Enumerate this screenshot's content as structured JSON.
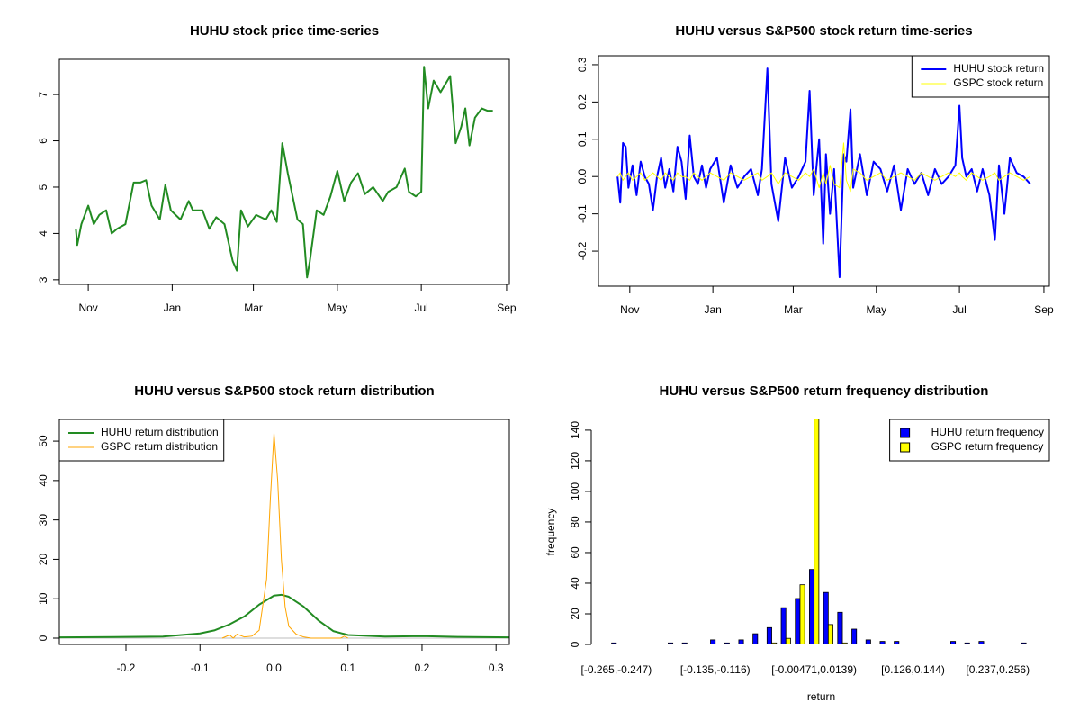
{
  "chart_data": [
    {
      "type": "line",
      "title": "HUHU stock price time-series",
      "color": "#228b22",
      "x": [
        22,
        23,
        26,
        31,
        35,
        39,
        44,
        48,
        52,
        58,
        64,
        69,
        73,
        77,
        83,
        87,
        91,
        98,
        104,
        107,
        114,
        119,
        124,
        130,
        136,
        139,
        142,
        147,
        153,
        160,
        164,
        168,
        172,
        176,
        183,
        187,
        190,
        192,
        197,
        202,
        207,
        212,
        217,
        222,
        227,
        232,
        238,
        245,
        249,
        255,
        261,
        264,
        269,
        273,
        275,
        278,
        282,
        287,
        294,
        298,
        302,
        305,
        308,
        312,
        317,
        321,
        325
      ],
      "values": [
        4.1,
        3.75,
        4.2,
        4.6,
        4.2,
        4.4,
        4.5,
        4.0,
        4.1,
        4.2,
        5.1,
        5.1,
        5.15,
        4.6,
        4.3,
        5.05,
        4.5,
        4.3,
        4.7,
        4.5,
        4.5,
        4.1,
        4.35,
        4.2,
        3.4,
        3.2,
        4.5,
        4.15,
        4.4,
        4.3,
        4.5,
        4.25,
        5.95,
        5.3,
        4.3,
        4.2,
        3.05,
        3.4,
        4.5,
        4.4,
        4.8,
        5.35,
        4.7,
        5.1,
        5.3,
        4.85,
        5.0,
        4.7,
        4.9,
        5.0,
        5.4,
        4.9,
        4.8,
        4.9,
        7.6,
        6.7,
        7.3,
        7.05,
        7.4,
        5.95,
        6.3,
        6.7,
        5.9,
        6.5,
        6.7,
        6.65,
        6.65
      ],
      "xlim": [
        10,
        337
      ],
      "xticks": [
        {
          "value": 31,
          "label": "Nov"
        },
        {
          "value": 92,
          "label": "Jan"
        },
        {
          "value": 151,
          "label": "Mar"
        },
        {
          "value": 212,
          "label": "May"
        },
        {
          "value": 273,
          "label": "Jul"
        },
        {
          "value": 335,
          "label": "Sep"
        }
      ],
      "ylim": [
        2.9,
        7.76
      ],
      "yticks": [
        3,
        4,
        5,
        6,
        7
      ]
    },
    {
      "type": "line",
      "title": "HUHU versus S&P500 stock return time-series",
      "legend": "topright",
      "x": [
        22,
        24,
        26,
        28,
        30,
        33,
        36,
        39,
        42,
        45,
        48,
        51,
        54,
        57,
        60,
        63,
        66,
        69,
        72,
        75,
        78,
        81,
        84,
        87,
        90,
        95,
        100,
        105,
        110,
        115,
        120,
        125,
        128,
        132,
        135,
        140,
        145,
        150,
        155,
        160,
        163,
        166,
        170,
        173,
        175,
        178,
        181,
        185,
        188,
        190,
        193,
        195,
        200,
        205,
        210,
        215,
        220,
        225,
        230,
        235,
        240,
        245,
        250,
        255,
        260,
        265,
        270,
        273,
        275,
        278,
        282,
        286,
        290,
        295,
        299,
        302,
        306,
        310,
        315,
        320,
        325
      ],
      "series": [
        {
          "name": "HUHU stock return",
          "color": "#0000ff",
          "values": [
            0.0,
            -0.07,
            0.09,
            0.08,
            -0.03,
            0.03,
            -0.05,
            0.04,
            0.0,
            -0.02,
            -0.09,
            0.0,
            0.05,
            -0.03,
            0.02,
            -0.04,
            0.08,
            0.04,
            -0.06,
            0.11,
            0.0,
            -0.02,
            0.03,
            -0.03,
            0.02,
            0.05,
            -0.07,
            0.03,
            -0.03,
            0.0,
            0.02,
            -0.05,
            0.02,
            0.29,
            -0.02,
            -0.12,
            0.05,
            -0.03,
            0.0,
            0.04,
            0.23,
            -0.05,
            0.1,
            -0.18,
            0.06,
            -0.1,
            0.02,
            -0.27,
            0.06,
            0.04,
            0.18,
            -0.03,
            0.06,
            -0.05,
            0.04,
            0.02,
            -0.04,
            0.03,
            -0.09,
            0.02,
            -0.02,
            0.01,
            -0.05,
            0.02,
            -0.02,
            0.0,
            0.03,
            0.19,
            0.05,
            0.0,
            0.02,
            -0.04,
            0.02,
            -0.05,
            -0.17,
            0.03,
            -0.1,
            0.05,
            0.01,
            0.0,
            -0.02
          ]
        },
        {
          "name": "GSPC stock return",
          "color": "#ffff00",
          "values": [
            0.0,
            0.01,
            -0.01,
            0.0,
            0.01,
            -0.01,
            0.0,
            0.01,
            -0.01,
            0.0,
            0.01,
            0.0,
            -0.01,
            0.01,
            0.0,
            -0.01,
            0.01,
            0.0,
            0.0,
            -0.01,
            0.01,
            0.0,
            -0.01,
            0.0,
            0.01,
            0.0,
            -0.01,
            0.01,
            0.0,
            -0.01,
            0.0,
            0.01,
            -0.01,
            0.0,
            0.01,
            -0.02,
            0.01,
            0.0,
            -0.01,
            0.01,
            0.0,
            0.02,
            -0.03,
            0.01,
            -0.02,
            0.03,
            -0.02,
            -0.03,
            0.09,
            -0.01,
            -0.04,
            0.02,
            0.01,
            -0.01,
            0.0,
            0.01,
            -0.01,
            0.0,
            0.01,
            0.0,
            -0.01,
            0.01,
            0.0,
            -0.01,
            0.0,
            0.01,
            0.0,
            0.01,
            0.0,
            -0.01,
            0.01,
            0.0,
            -0.01,
            0.0,
            0.01,
            -0.01,
            0.0,
            0.01,
            0.0,
            -0.01,
            0.0
          ]
        }
      ],
      "xlim": [
        8,
        339
      ],
      "xticks": [
        {
          "value": 31,
          "label": "Nov"
        },
        {
          "value": 92,
          "label": "Jan"
        },
        {
          "value": 151,
          "label": "Mar"
        },
        {
          "value": 212,
          "label": "May"
        },
        {
          "value": 273,
          "label": "Jul"
        },
        {
          "value": 335,
          "label": "Sep"
        }
      ],
      "ylim": [
        -0.294,
        0.324
      ],
      "yticks": [
        -0.2,
        -0.1,
        {
          "value": 0,
          "label": "0.0"
        },
        0.1,
        0.2,
        0.3
      ]
    },
    {
      "type": "density",
      "title": "HUHU versus S&P500 stock return distribution",
      "legend": "topleft",
      "series": [
        {
          "name": "HUHU return distribution",
          "color": "#228b22",
          "x": [
            -0.29,
            -0.2,
            -0.15,
            -0.1,
            -0.08,
            -0.06,
            -0.04,
            -0.02,
            0.0,
            0.01,
            0.02,
            0.04,
            0.06,
            0.08,
            0.1,
            0.15,
            0.2,
            0.25,
            0.318
          ],
          "values": [
            0.2,
            0.3,
            0.4,
            1.2,
            2.0,
            3.5,
            5.5,
            8.5,
            10.8,
            11.0,
            10.5,
            8.0,
            4.5,
            1.8,
            0.8,
            0.4,
            0.5,
            0.3,
            0.2
          ]
        },
        {
          "name": "GSPC return distribution",
          "color": "#ffa500",
          "x": [
            -0.07,
            -0.06,
            -0.055,
            -0.05,
            -0.04,
            -0.03,
            -0.02,
            -0.01,
            -0.005,
            0.0,
            0.005,
            0.01,
            0.015,
            0.02,
            0.03,
            0.04,
            0.05,
            0.09,
            0.095,
            0.1
          ],
          "values": [
            0,
            0.8,
            0,
            1.0,
            0.3,
            0.5,
            2,
            15,
            35,
            52,
            40,
            20,
            8,
            3,
            1,
            0.3,
            0,
            0,
            0.5,
            0
          ]
        }
      ],
      "xlim": [
        -0.29,
        0.318
      ],
      "xticks": [
        -0.2,
        -0.1,
        {
          "value": 0,
          "label": "0.0"
        },
        0.1,
        0.2,
        0.3
      ],
      "ylim": [
        -1.6,
        55.5
      ],
      "yticks": [
        0,
        10,
        20,
        30,
        40,
        50
      ]
    },
    {
      "type": "bar",
      "title": "HUHU versus S&P500 return frequency distribution",
      "legend": "topright",
      "x_label": "return",
      "y_label": "frequency",
      "categories": [
        "[-0.265,-0.247)",
        null,
        null,
        null,
        null,
        null,
        null,
        "[-0.135,-0.116)",
        null,
        null,
        null,
        null,
        null,
        null,
        "[-0.00471,0.0139)",
        null,
        null,
        null,
        null,
        null,
        null,
        "[0.126,0.144)",
        null,
        null,
        null,
        null,
        null,
        "[0.237,0.256)",
        null,
        null
      ],
      "series": [
        {
          "name": "HUHU return frequency",
          "color": "#0000ff",
          "values": [
            1,
            0,
            0,
            0,
            1,
            1,
            0,
            3,
            1,
            3,
            7,
            11,
            24,
            30,
            49,
            34,
            21,
            10,
            3,
            2,
            2,
            0,
            0,
            0,
            2,
            1,
            2,
            0,
            0,
            1
          ]
        },
        {
          "name": "GSPC return frequency",
          "color": "#ffff00",
          "values": [
            0,
            0,
            0,
            0,
            0,
            0,
            0,
            0,
            0,
            0,
            0,
            1,
            4,
            39,
            150,
            13,
            1,
            0,
            0,
            0,
            0,
            0,
            0,
            0,
            0,
            0,
            0,
            0,
            0,
            0
          ]
        }
      ],
      "ylim": [
        0,
        147
      ],
      "yticks": [
        0,
        20,
        40,
        60,
        80,
        100,
        120,
        140
      ]
    }
  ]
}
